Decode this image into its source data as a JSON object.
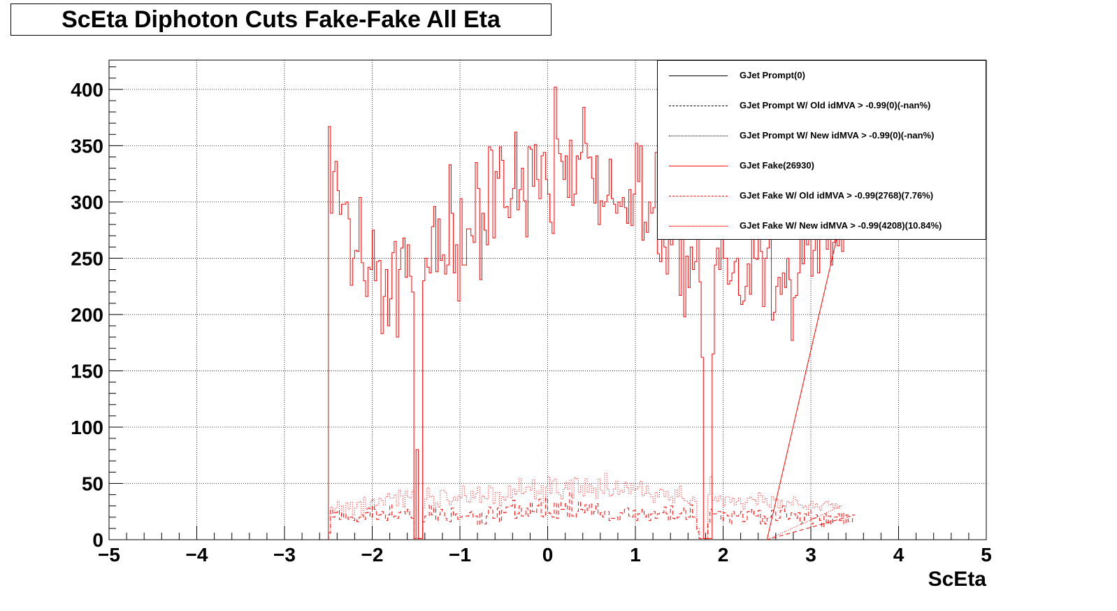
{
  "title": "ScEta Diphoton Cuts Fake-Fake All Eta",
  "legend": [
    {
      "label": "GJet Prompt(0)",
      "color": "#000000",
      "style": "solid"
    },
    {
      "label": "GJet Prompt W/ Old idMVA > -0.99(0)(-nan%)",
      "color": "#000000",
      "style": "dashed"
    },
    {
      "label": "GJet Prompt W/ New idMVA > -0.99(0)(-nan%)",
      "color": "#000000",
      "style": "dotted"
    },
    {
      "label": "GJet Fake(26930)",
      "color": "#ff0000",
      "style": "solid"
    },
    {
      "label": "GJet Fake W/ Old idMVA > -0.99(2768)(7.76%)",
      "color": "#ff0000",
      "style": "dashed"
    },
    {
      "label": "GJet Fake W/ New idMVA > -0.99(4208)(10.84%)",
      "color": "#ff0000",
      "style": "dotted"
    }
  ],
  "chart_data": {
    "type": "line",
    "title": "ScEta Diphoton Cuts Fake-Fake All Eta",
    "xlabel": "ScEta",
    "ylabel": "",
    "xlim": [
      -5,
      5
    ],
    "ylim": [
      0,
      426
    ],
    "grid": true,
    "legend_position": "top-right",
    "x_ticks": [
      -5,
      -4,
      -3,
      -2,
      -1,
      0,
      1,
      2,
      3,
      4,
      5
    ],
    "x_tick_labels": [
      "−5",
      "−4",
      "−3",
      "−2",
      "−1",
      "0",
      "1",
      "2",
      "3",
      "4",
      "5"
    ],
    "y_ticks": [
      0,
      50,
      100,
      150,
      200,
      250,
      300,
      350,
      400
    ],
    "y_tick_labels": [
      "0",
      "50",
      "100",
      "150",
      "200",
      "250",
      "300",
      "350",
      "400"
    ],
    "bin_edges_range": [
      -2.5,
      2.5
    ],
    "bin_width": 0.025,
    "series": [
      {
        "name": "GJet Fake(26930)",
        "color": "#ff0000",
        "style": "solid",
        "values": [
          367,
          290,
          327,
          336,
          310,
          289,
          298,
          298,
          300,
          285,
          226,
          250,
          257,
          256,
          304,
          246,
          230,
          216,
          242,
          240,
          275,
          230,
          247,
          248,
          183,
          216,
          240,
          190,
          214,
          255,
          265,
          180,
          240,
          259,
          268,
          233,
          262,
          234,
          220,
          1,
          80,
          1,
          1,
          230,
          250,
          242,
          237,
          278,
          296,
          238,
          285,
          248,
          253,
          236,
          244,
          333,
          290,
          237,
          262,
          212,
          303,
          244,
          244,
          276,
          276,
          270,
          264,
          335,
          312,
          231,
          290,
          275,
          262,
          349,
          346,
          268,
          327,
          321,
          349,
          337,
          295,
          296,
          286,
          303,
          312,
          362,
          293,
          311,
          330,
          301,
          269,
          349,
          347,
          314,
          351,
          320,
          303,
          341,
          344,
          320,
          307,
          282,
          272,
          402,
          356,
          343,
          336,
          320,
          341,
          304,
          355,
          297,
          307,
          341,
          338,
          344,
          384,
          352,
          339,
          340,
          321,
          299,
          341,
          280,
          301,
          296,
          300,
          306,
          338,
          303,
          298,
          290,
          300,
          296,
          304,
          295,
          281,
          311,
          279,
          307,
          352,
          318,
          350,
          266,
          282,
          273,
          300,
          290,
          295,
          344,
          254,
          247,
          275,
          260,
          236,
          306,
          262,
          276,
          273,
          300,
          217,
          272,
          198,
          252,
          224,
          260,
          240,
          247,
          298,
          229,
          162,
          1,
          1,
          1,
          1,
          165,
          244,
          259,
          240,
          267,
          250,
          250,
          227,
          230,
          237,
          247,
          250,
          217,
          209,
          212,
          225,
          245,
          218,
          279,
          250,
          249,
          267,
          256,
          207,
          250,
          259,
          278,
          195,
          202,
          225,
          233,
          218,
          237,
          224,
          250,
          231,
          177,
          215,
          217,
          237,
          274,
          245,
          282,
          262,
          286,
          234,
          257,
          277,
          237,
          268,
          285,
          292,
          258,
          283,
          244,
          264,
          270,
          261,
          287,
          256,
          303
        ]
      },
      {
        "name": "GJet Fake W/ Old idMVA > -0.99(2768)(7.76%)",
        "color": "#ff0000",
        "style": "dashed",
        "values": [
          6,
          27,
          20,
          24,
          26,
          18,
          24,
          19,
          22,
          18,
          20,
          17,
          19,
          16,
          20,
          22,
          18,
          24,
          28,
          20,
          30,
          27,
          18,
          22,
          25,
          23,
          17,
          22,
          31,
          20,
          21,
          19,
          24,
          25,
          25,
          23,
          27,
          20,
          19,
          1,
          1,
          1,
          1,
          16,
          21,
          21,
          31,
          22,
          28,
          17,
          22,
          27,
          24,
          19,
          17,
          16,
          28,
          21,
          23,
          18,
          20,
          21,
          21,
          21,
          24,
          25,
          20,
          21,
          13,
          24,
          15,
          14,
          21,
          29,
          27,
          19,
          20,
          28,
          16,
          26,
          24,
          29,
          29,
          30,
          35,
          19,
          23,
          30,
          21,
          22,
          28,
          21,
          33,
          25,
          24,
          30,
          36,
          21,
          20,
          37,
          24,
          23,
          20,
          33,
          19,
          33,
          27,
          27,
          32,
          20,
          42,
          21,
          20,
          25,
          34,
          27,
          24,
          31,
          26,
          32,
          22,
          25,
          32,
          22,
          24,
          20,
          25,
          25,
          17,
          19,
          19,
          20,
          17,
          24,
          23,
          27,
          28,
          21,
          20,
          26,
          17,
          23,
          24,
          27,
          20,
          23,
          17,
          23,
          25,
          19,
          23,
          24,
          24,
          29,
          23,
          17,
          30,
          19,
          18,
          20,
          23,
          24,
          28,
          18,
          20,
          31,
          20,
          20,
          7,
          1,
          1,
          1,
          1,
          15,
          27,
          23,
          23,
          25,
          25,
          17,
          24,
          22,
          21,
          14,
          25,
          22,
          21,
          23,
          25,
          16,
          17,
          25,
          24,
          27,
          21,
          21,
          26,
          14,
          21,
          14,
          19,
          20,
          26,
          25,
          17,
          19,
          26,
          30,
          25,
          18,
          19,
          24,
          23,
          19,
          24,
          14,
          16,
          23,
          21,
          26,
          14,
          19,
          22,
          19,
          17,
          11,
          23,
          14,
          21,
          14,
          20,
          20,
          23,
          17,
          24,
          14,
          22,
          16,
          16,
          22
        ]
      },
      {
        "name": "GJet Fake W/ New idMVA > -0.99(4208)(10.84%)",
        "color": "#ff0000",
        "style": "dotted",
        "values": [
          6,
          29,
          24,
          28,
          34,
          26,
          30,
          23,
          33,
          27,
          33,
          22,
          28,
          33,
          34,
          22,
          38,
          27,
          28,
          34,
          36,
          30,
          31,
          37,
          35,
          31,
          38,
          41,
          37,
          37,
          40,
          30,
          44,
          39,
          29,
          43,
          38,
          37,
          43,
          1,
          1,
          1,
          1,
          28,
          36,
          46,
          38,
          39,
          27,
          33,
          29,
          44,
          44,
          42,
          35,
          31,
          34,
          38,
          35,
          39,
          37,
          48,
          39,
          34,
          33,
          43,
          37,
          41,
          47,
          33,
          39,
          37,
          36,
          48,
          46,
          32,
          42,
          42,
          30,
          38,
          35,
          38,
          48,
          37,
          45,
          40,
          43,
          54,
          41,
          42,
          47,
          47,
          44,
          53,
          36,
          43,
          41,
          48,
          33,
          47,
          56,
          41,
          52,
          54,
          42,
          40,
          36,
          45,
          51,
          45,
          53,
          37,
          55,
          54,
          42,
          48,
          39,
          54,
          42,
          49,
          42,
          46,
          37,
          54,
          44,
          41,
          59,
          45,
          39,
          40,
          45,
          52,
          40,
          44,
          42,
          51,
          46,
          41,
          50,
          44,
          45,
          47,
          52,
          39,
          41,
          48,
          41,
          38,
          33,
          42,
          38,
          45,
          44,
          38,
          43,
          35,
          38,
          33,
          44,
          38,
          48,
          37,
          35,
          34,
          32,
          35,
          38,
          34,
          10,
          1,
          1,
          1,
          1,
          40,
          56,
          35,
          38,
          34,
          39,
          36,
          30,
          38,
          38,
          33,
          37,
          31,
          34,
          37,
          32,
          27,
          33,
          37,
          38,
          36,
          35,
          31,
          42,
          39,
          33,
          37,
          31,
          29,
          38,
          35,
          36,
          28,
          35,
          30,
          29,
          34,
          33,
          31,
          38,
          35,
          31,
          31,
          28,
          30,
          27,
          31,
          34,
          28,
          32,
          29,
          26,
          31,
          33,
          34,
          31,
          32,
          28,
          32,
          28,
          30
        ]
      }
    ]
  }
}
